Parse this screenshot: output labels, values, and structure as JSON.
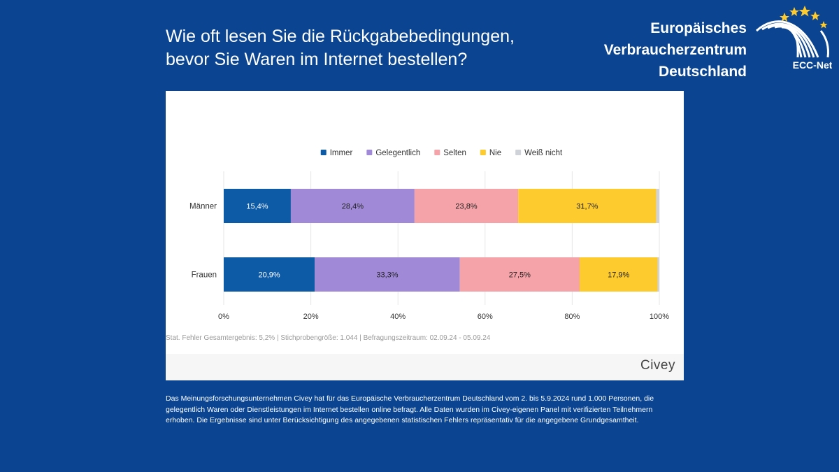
{
  "title_lines": [
    "Wie oft lesen Sie die Rückgabebedingungen,",
    "bevor Sie Waren im Internet bestellen?"
  ],
  "brand_lines": [
    "Europäisches",
    "Verbraucherzentrum",
    "Deutschland"
  ],
  "logo_text": "ECC-Net",
  "chart_data": {
    "type": "bar",
    "orientation": "horizontal",
    "stacked": true,
    "categories": [
      "Männer",
      "Frauen"
    ],
    "series": [
      {
        "name": "Immer",
        "color": "#0d5aa7",
        "values": [
          15.4,
          20.9
        ],
        "labels": [
          "15,4%",
          "20,9%"
        ]
      },
      {
        "name": "Gelegentlich",
        "color": "#a08ad8",
        "values": [
          28.4,
          33.3
        ],
        "labels": [
          "28,4%",
          "33,3%"
        ]
      },
      {
        "name": "Selten",
        "color": "#f5a3a8",
        "values": [
          23.8,
          27.5
        ],
        "labels": [
          "23,8%",
          "27,5%"
        ]
      },
      {
        "name": "Nie",
        "color": "#fdcb2e",
        "values": [
          31.7,
          17.9
        ],
        "labels": [
          "31,7%",
          "17,9%"
        ]
      },
      {
        "name": "Weiß nicht",
        "color": "#cfd3d9",
        "values": [
          0.7,
          0.4
        ],
        "labels": [
          "",
          ""
        ]
      }
    ],
    "xlim": [
      0,
      100
    ],
    "xticks": [
      0,
      20,
      40,
      60,
      80,
      100
    ],
    "xtick_labels": [
      "0%",
      "20%",
      "40%",
      "60%",
      "80%",
      "100%"
    ],
    "legend_position": "top",
    "grid": true
  },
  "note": "Stat. Fehler Gesamtergebnis: 5,2% | Stichprobengröße: 1.044 | Befragungszeitraum: 02.09.24 - 05.09.24",
  "source_brand": "Civey",
  "description": "Das Meinungsforschungsunternehmen Civey hat für das Europäische Verbraucherzentrum Deutschland vom 2. bis 5.9.2024 rund 1.000 Personen, die gelegentlich Waren oder Dienstleistungen im Internet bestellen online befragt. Alle Daten wurden im Civey-eigenen Panel mit verifizierten Teilnehmern erhoben. Die Ergebnisse sind unter Berücksichtigung des angegebenen statistischen Fehlers repräsentativ für die angegebene Grundgesamtheit."
}
